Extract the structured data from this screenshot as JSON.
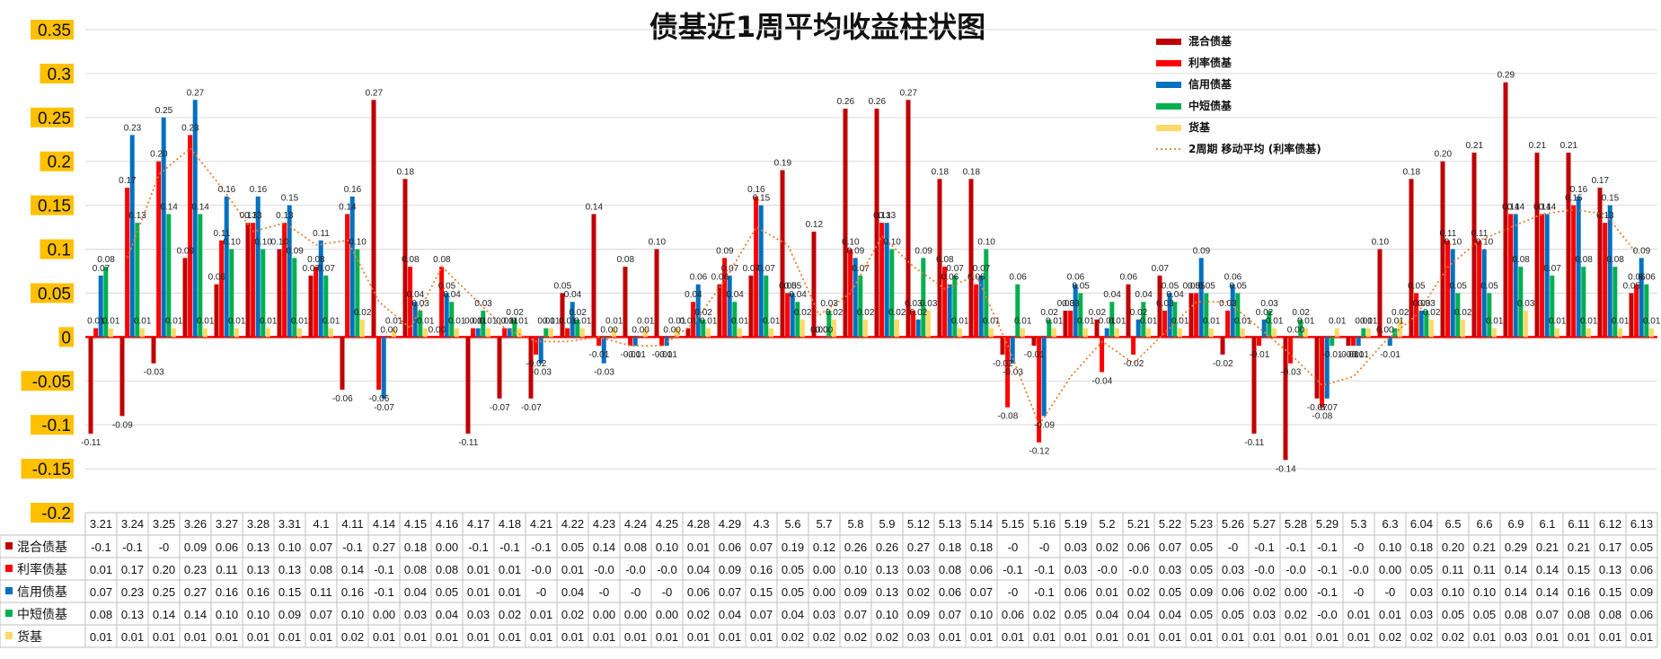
{
  "chart_data": {
    "type": "bar",
    "title": "债基近1周平均收益柱状图",
    "ylim": [
      -0.2,
      0.35
    ],
    "yticks": [
      "0.35",
      "0.3",
      "0.25",
      "0.2",
      "0.15",
      "0.1",
      "0.05",
      "0",
      "-0.05",
      "-0.1",
      "-0.15",
      "-0.2"
    ],
    "ytick_values": [
      0.35,
      0.3,
      0.25,
      0.2,
      0.15,
      0.1,
      0.05,
      0,
      -0.05,
      -0.1,
      -0.15,
      -0.2
    ],
    "categories": [
      "3.21",
      "3.24",
      "3.25",
      "3.26",
      "3.27",
      "3.28",
      "3.31",
      "4.1",
      "4.11",
      "4.14",
      "4.15",
      "4.16",
      "4.17",
      "4.18",
      "4.21",
      "4.22",
      "4.23",
      "4.24",
      "4.25",
      "4.28",
      "4.29",
      "4.3",
      "5.6",
      "5.7",
      "5.8",
      "5.9",
      "5.12",
      "5.13",
      "5.14",
      "5.15",
      "5.16",
      "5.19",
      "5.2",
      "5.21",
      "5.22",
      "5.23",
      "5.26",
      "5.27",
      "5.28",
      "5.29",
      "5.3",
      "6.3",
      "6.04",
      "6.5",
      "6.6",
      "6.9",
      "6.1",
      "6.11",
      "6.12",
      "6.13"
    ],
    "series": [
      {
        "name": "混合债基",
        "color": "#C00000",
        "values": [
          -0.11,
          -0.09,
          -0.03,
          0.09,
          0.06,
          0.13,
          0.1,
          0.07,
          -0.06,
          0.27,
          0.18,
          0.0,
          -0.11,
          -0.07,
          -0.07,
          0.05,
          0.14,
          0.08,
          0.1,
          0.01,
          0.06,
          0.07,
          0.19,
          0.12,
          0.26,
          0.26,
          0.27,
          0.18,
          0.18,
          -0.02,
          -0.01,
          0.03,
          0.02,
          0.06,
          0.07,
          0.05,
          -0.02,
          -0.11,
          -0.14,
          -0.07,
          -0.01,
          0.1,
          0.18,
          0.2,
          0.21,
          0.29,
          0.21,
          0.21,
          0.17,
          0.05
        ],
        "labels": [
          "-0.11",
          "-0.09",
          "-0.03",
          "0.09",
          "0.06",
          "0.13",
          "0.10",
          "0.07",
          "-0.06",
          "0.27",
          "0.18",
          "0.00",
          "-0.11",
          "-0.07",
          "-0.07",
          "0.05",
          "0.14",
          "0.08",
          "0.10",
          "0.01",
          "0.06",
          "0.07",
          "0.19",
          "0.12",
          "0.26",
          "0.26",
          "0.27",
          "0.18",
          "0.18",
          "-0.02",
          "-0.01",
          "0.03",
          "0.02",
          "0.06",
          "0.07",
          "0.05",
          "-0.02",
          "-0.11",
          "-0.14",
          "-0.07",
          "-0.01",
          "0.10",
          "0.18",
          "0.20",
          "0.21",
          "0.29",
          "0.21",
          "0.21",
          "0.17",
          "0.05"
        ],
        "table": [
          "-0.1",
          "-0.1",
          "-0",
          "0.09",
          "0.06",
          "0.13",
          "0.10",
          "0.07",
          "-0.1",
          "0.27",
          "0.18",
          "0.00",
          "-0.1",
          "-0.1",
          "-0.1",
          "0.05",
          "0.14",
          "0.08",
          "0.10",
          "0.01",
          "0.06",
          "0.07",
          "0.19",
          "0.12",
          "0.26",
          "0.26",
          "0.27",
          "0.18",
          "0.18",
          "-0",
          "-0",
          "0.03",
          "0.02",
          "0.06",
          "0.07",
          "0.05",
          "-0",
          "-0.1",
          "-0.1",
          "-0.1",
          "-0",
          "0.10",
          "0.18",
          "0.20",
          "0.21",
          "0.29",
          "0.21",
          "0.21",
          "0.17",
          "0.05"
        ]
      },
      {
        "name": "利率债基",
        "color": "#FF0000",
        "values": [
          0.01,
          0.17,
          0.2,
          0.23,
          0.11,
          0.13,
          0.13,
          0.08,
          0.14,
          -0.06,
          0.08,
          0.08,
          0.01,
          0.01,
          -0.02,
          0.01,
          -0.01,
          -0.01,
          -0.01,
          0.04,
          0.09,
          0.16,
          0.05,
          0.0,
          0.1,
          0.13,
          0.03,
          0.08,
          0.06,
          -0.08,
          -0.12,
          0.03,
          -0.04,
          -0.02,
          0.03,
          0.05,
          0.03,
          -0.01,
          -0.03,
          -0.08,
          -0.01,
          0.0,
          0.05,
          0.11,
          0.11,
          0.14,
          0.14,
          0.15,
          0.13,
          0.06
        ],
        "labels": [
          "0.01",
          "0.17",
          "0.20",
          "0.23",
          "0.11",
          "0.13",
          "0.13",
          "0.08",
          "0.14",
          "-0.06",
          "0.08",
          "0.08",
          "0.01",
          "0.01",
          "-0.02",
          "0.01",
          "-0.01",
          "-0.01",
          "-0.01",
          "0.04",
          "0.09",
          "0.16",
          "0.05",
          "0.00",
          "0.10",
          "0.13",
          "0.03",
          "0.08",
          "0.06",
          "-0.08",
          "-0.12",
          "0.03",
          "-0.04",
          "-0.02",
          "0.03",
          "0.05",
          "0.03",
          "-0.01",
          "-0.03",
          "-0.08",
          "-0.01",
          "0.00",
          "0.05",
          "0.11",
          "0.11",
          "0.14",
          "0.14",
          "0.15",
          "0.13",
          "0.06"
        ],
        "table": [
          "0.01",
          "0.17",
          "0.20",
          "0.23",
          "0.11",
          "0.13",
          "0.13",
          "0.08",
          "0.14",
          "-0.1",
          "0.08",
          "0.08",
          "0.01",
          "0.01",
          "-0.0",
          "0.01",
          "-0.0",
          "-0.0",
          "-0.0",
          "0.04",
          "0.09",
          "0.16",
          "0.05",
          "0.00",
          "0.10",
          "0.13",
          "0.03",
          "0.08",
          "0.06",
          "-0.1",
          "-0.1",
          "0.03",
          "-0.0",
          "-0.0",
          "0.03",
          "0.05",
          "0.03",
          "-0.0",
          "-0.0",
          "-0.1",
          "-0.0",
          "0.00",
          "0.05",
          "0.11",
          "0.11",
          "0.14",
          "0.14",
          "0.15",
          "0.13",
          "0.06"
        ]
      },
      {
        "name": "信用债基",
        "color": "#0070C0",
        "values": [
          0.07,
          0.23,
          0.25,
          0.27,
          0.16,
          0.16,
          0.15,
          0.11,
          0.16,
          -0.07,
          0.04,
          0.05,
          0.01,
          0.01,
          -0.03,
          0.04,
          -0.03,
          -0.01,
          -0.01,
          0.06,
          0.07,
          0.15,
          0.05,
          0.0,
          0.09,
          0.13,
          0.02,
          0.06,
          0.07,
          -0.03,
          -0.09,
          0.06,
          0.01,
          0.02,
          0.05,
          0.09,
          0.06,
          0.02,
          0.0,
          -0.07,
          -0.01,
          -0.01,
          0.03,
          0.1,
          0.1,
          0.14,
          0.14,
          0.16,
          0.15,
          0.09
        ],
        "labels": [
          "0.07",
          "0.23",
          "0.25",
          "0.27",
          "0.16",
          "0.16",
          "0.15",
          "0.11",
          "0.16",
          "-0.07",
          "0.04",
          "0.05",
          "0.01",
          "0.01",
          "-0.03",
          "0.04",
          "-0.03",
          "-0.01",
          "-0.01",
          "0.06",
          "0.07",
          "0.15",
          "0.05",
          "0.00",
          "0.09",
          "0.13",
          "0.02",
          "0.06",
          "0.07",
          "-0.03",
          "-0.09",
          "0.06",
          "0.01",
          "0.02",
          "0.05",
          "0.09",
          "0.06",
          "0.02",
          "0.00",
          "-0.07",
          "-0.01",
          "-0.01",
          "0.03",
          "0.10",
          "0.10",
          "0.14",
          "0.14",
          "0.16",
          "0.15",
          "0.09"
        ],
        "table": [
          "0.07",
          "0.23",
          "0.25",
          "0.27",
          "0.16",
          "0.16",
          "0.15",
          "0.11",
          "0.16",
          "-0.1",
          "0.04",
          "0.05",
          "0.01",
          "0.01",
          "-0",
          "0.04",
          "-0",
          "-0",
          "-0",
          "0.06",
          "0.07",
          "0.15",
          "0.05",
          "0.00",
          "0.09",
          "0.13",
          "0.02",
          "0.06",
          "0.07",
          "-0",
          "-0.1",
          "0.06",
          "0.01",
          "0.02",
          "0.05",
          "0.09",
          "0.06",
          "0.02",
          "0.00",
          "-0.1",
          "-0",
          "-0",
          "0.03",
          "0.10",
          "0.10",
          "0.14",
          "0.14",
          "0.16",
          "0.15",
          "0.09"
        ]
      },
      {
        "name": "中短债基",
        "color": "#00B050",
        "values": [
          0.08,
          0.13,
          0.14,
          0.14,
          0.1,
          0.1,
          0.09,
          0.07,
          0.1,
          0.0,
          0.03,
          0.04,
          0.03,
          0.02,
          0.01,
          0.02,
          0.0,
          0.0,
          0.0,
          0.02,
          0.04,
          0.07,
          0.04,
          0.03,
          0.07,
          0.1,
          0.09,
          0.07,
          0.1,
          0.06,
          0.02,
          0.05,
          0.04,
          0.04,
          0.04,
          0.05,
          0.05,
          0.03,
          0.02,
          -0.01,
          0.01,
          0.01,
          0.03,
          0.05,
          0.05,
          0.08,
          0.07,
          0.08,
          0.08,
          0.06
        ],
        "labels": [
          "0.08",
          "0.13",
          "0.14",
          "0.14",
          "0.10",
          "0.10",
          "0.09",
          "0.07",
          "0.10",
          "0.00",
          "0.03",
          "0.04",
          "0.03",
          "0.02",
          "0.01",
          "0.02",
          "0.00",
          "0.00",
          "0.00",
          "0.02",
          "0.04",
          "0.07",
          "0.04",
          "0.03",
          "0.07",
          "0.10",
          "0.09",
          "0.07",
          "0.10",
          "0.06",
          "0.02",
          "0.05",
          "0.04",
          "0.04",
          "0.04",
          "0.05",
          "0.05",
          "0.03",
          "0.02",
          "-0.01",
          "0.01",
          "0.01",
          "0.03",
          "0.05",
          "0.05",
          "0.08",
          "0.07",
          "0.08",
          "0.08",
          "0.06"
        ],
        "table": [
          "0.08",
          "0.13",
          "0.14",
          "0.14",
          "0.10",
          "0.10",
          "0.09",
          "0.07",
          "0.10",
          "0.00",
          "0.03",
          "0.04",
          "0.03",
          "0.02",
          "0.01",
          "0.02",
          "0.00",
          "0.00",
          "0.00",
          "0.02",
          "0.04",
          "0.07",
          "0.04",
          "0.03",
          "0.07",
          "0.10",
          "0.09",
          "0.07",
          "0.10",
          "0.06",
          "0.02",
          "0.05",
          "0.04",
          "0.04",
          "0.04",
          "0.05",
          "0.05",
          "0.03",
          "0.02",
          "-0.0",
          "0.01",
          "0.01",
          "0.03",
          "0.05",
          "0.05",
          "0.08",
          "0.07",
          "0.08",
          "0.08",
          "0.06"
        ]
      },
      {
        "name": "货基",
        "color": "#FFD966",
        "values": [
          0.01,
          0.01,
          0.01,
          0.01,
          0.01,
          0.01,
          0.01,
          0.01,
          0.02,
          0.01,
          0.01,
          0.01,
          0.01,
          0.01,
          0.01,
          0.01,
          0.01,
          0.01,
          0.01,
          0.01,
          0.01,
          0.01,
          0.02,
          0.02,
          0.02,
          0.02,
          0.03,
          0.01,
          0.01,
          0.01,
          0.01,
          0.01,
          0.01,
          0.01,
          0.01,
          0.01,
          0.01,
          0.01,
          0.01,
          0.01,
          0.01,
          0.02,
          0.02,
          0.02,
          0.01,
          0.03,
          0.01,
          0.01,
          0.01,
          0.01
        ],
        "labels": [
          "0.01",
          "0.01",
          "0.01",
          "0.01",
          "0.01",
          "0.01",
          "0.01",
          "0.01",
          "0.02",
          "0.01",
          "0.01",
          "0.01",
          "0.01",
          "0.01",
          "0.01",
          "0.01",
          "0.01",
          "0.01",
          "0.01",
          "0.01",
          "0.01",
          "0.01",
          "0.02",
          "0.02",
          "0.02",
          "0.02",
          "0.03",
          "0.01",
          "0.01",
          "0.01",
          "0.01",
          "0.01",
          "0.01",
          "0.01",
          "0.01",
          "0.01",
          "0.01",
          "0.01",
          "0.01",
          "0.01",
          "0.01",
          "0.02",
          "0.02",
          "0.02",
          "0.01",
          "0.03",
          "0.01",
          "0.01",
          "0.01",
          "0.01"
        ],
        "table": [
          "0.01",
          "0.01",
          "0.01",
          "0.01",
          "0.01",
          "0.01",
          "0.01",
          "0.01",
          "0.02",
          "0.01",
          "0.01",
          "0.01",
          "0.01",
          "0.01",
          "0.01",
          "0.01",
          "0.01",
          "0.01",
          "0.01",
          "0.01",
          "0.01",
          "0.01",
          "0.02",
          "0.02",
          "0.02",
          "0.02",
          "0.03",
          "0.01",
          "0.01",
          "0.01",
          "0.01",
          "0.01",
          "0.01",
          "0.01",
          "0.01",
          "0.01",
          "0.01",
          "0.01",
          "0.01",
          "0.01",
          "0.01",
          "0.02",
          "0.02",
          "0.02",
          "0.01",
          "0.03",
          "0.01",
          "0.01",
          "0.01",
          "0.01"
        ]
      }
    ],
    "trendline": {
      "name": "2周期 移动平均 (利率债基)",
      "color": "#ED7D31",
      "period": 2,
      "of_series": 1
    },
    "legend_position": "top-right",
    "grid": true,
    "data_table": true,
    "ytick_highlight": "#FFC000"
  }
}
